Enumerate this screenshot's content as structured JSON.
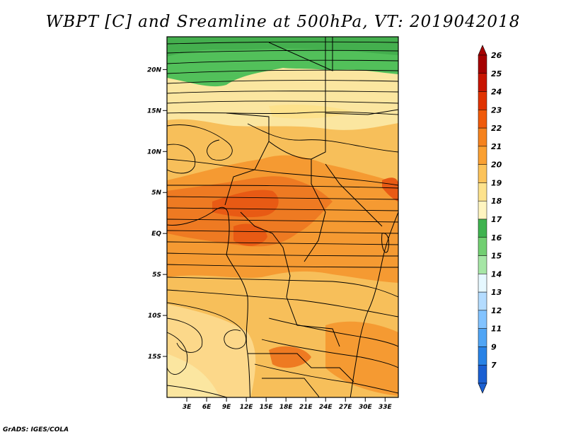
{
  "title": "WBPT [C] and Sreamline at 500hPa, VT: 2019042018",
  "credit": "GrADS: IGES/COLA",
  "map": {
    "lat_range": [
      -20,
      24
    ],
    "lon_range": [
      0,
      35
    ],
    "lat_ticks": [
      {
        "value": 20,
        "label": "20N"
      },
      {
        "value": 15,
        "label": "15N"
      },
      {
        "value": 10,
        "label": "10N"
      },
      {
        "value": 5,
        "label": "5N"
      },
      {
        "value": 0,
        "label": "EQ"
      },
      {
        "value": -5,
        "label": "5S"
      },
      {
        "value": -10,
        "label": "10S"
      },
      {
        "value": -15,
        "label": "15S"
      }
    ],
    "lon_ticks": [
      {
        "value": 3,
        "label": "3E"
      },
      {
        "value": 6,
        "label": "6E"
      },
      {
        "value": 9,
        "label": "9E"
      },
      {
        "value": 12,
        "label": "12E"
      },
      {
        "value": 15,
        "label": "15E"
      },
      {
        "value": 18,
        "label": "18E"
      },
      {
        "value": 21,
        "label": "21E"
      },
      {
        "value": 24,
        "label": "24E"
      },
      {
        "value": 27,
        "label": "27E"
      },
      {
        "value": 30,
        "label": "30E"
      },
      {
        "value": 33,
        "label": "33E"
      }
    ]
  },
  "colorbar": {
    "labels": [
      "26",
      "25",
      "24",
      "23",
      "22",
      "21",
      "20",
      "19",
      "18",
      "17",
      "16",
      "15",
      "14",
      "13",
      "12",
      "11",
      "9",
      "7"
    ],
    "colors": [
      "#a50000",
      "#c81400",
      "#e03200",
      "#f05a0a",
      "#f5821e",
      "#faa032",
      "#fcc35a",
      "#fde28c",
      "#fff5c0",
      "#3fb34f",
      "#72cf72",
      "#a6e6a6",
      "#e6f8ff",
      "#b4dcff",
      "#82c3ff",
      "#50a5f5",
      "#2882e6",
      "#1a5fd2"
    ]
  },
  "legend_colors": {
    "green_north": "#52c05a",
    "pale_yellow": "#fbe6a0",
    "light_orange": "#f7bf5a",
    "orange": "#f59a32",
    "dark_orange": "#ee7a22",
    "red_orange": "#e85a14"
  }
}
